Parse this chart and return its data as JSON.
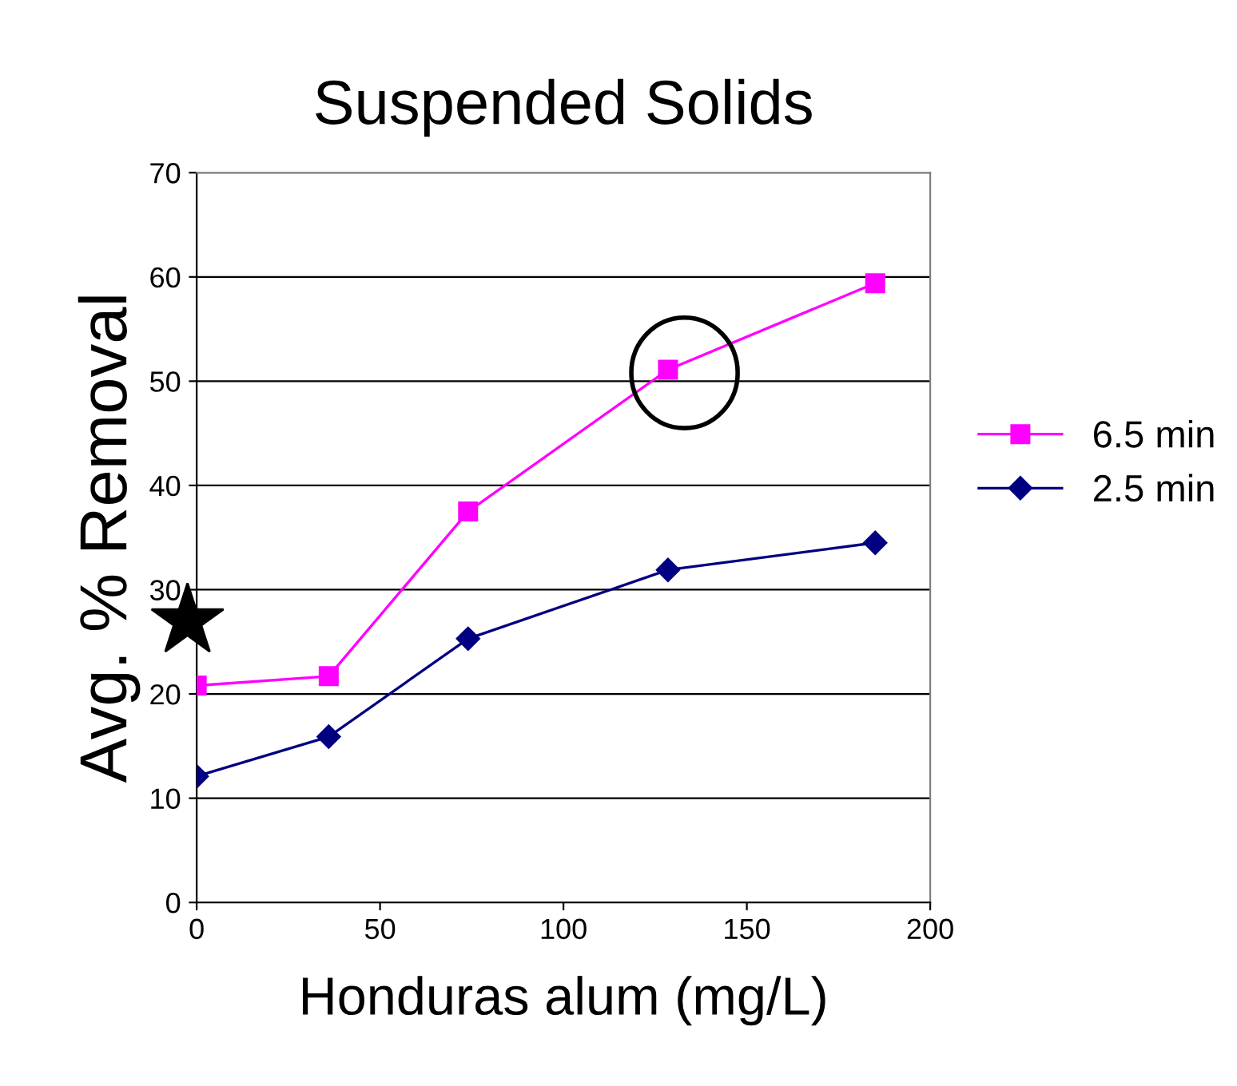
{
  "chart_data": {
    "type": "line",
    "title": "Suspended Solids",
    "xlabel": "Honduras alum (mg/L)",
    "ylabel": "Avg. % Removal",
    "series": [
      {
        "name": "6.5 min",
        "color": "#ff00ff",
        "marker": "square",
        "x": [
          0,
          36,
          74,
          128.5,
          185
        ],
        "values": [
          20.8,
          21.7,
          37.5,
          51.1,
          59.4
        ]
      },
      {
        "name": "2.5 min",
        "color": "#000080",
        "marker": "diamond",
        "x": [
          0,
          36,
          74,
          128.5,
          185
        ],
        "values": [
          12.1,
          15.9,
          25.3,
          31.9,
          34.5
        ]
      }
    ],
    "xlim": [
      0,
      200
    ],
    "xticks": [
      0,
      50,
      100,
      150,
      200
    ],
    "ylim": [
      0,
      70
    ],
    "yticks": [
      0,
      10,
      20,
      30,
      40,
      50,
      60,
      70
    ],
    "grid": "y",
    "legend": "right",
    "line_style": "solid"
  }
}
